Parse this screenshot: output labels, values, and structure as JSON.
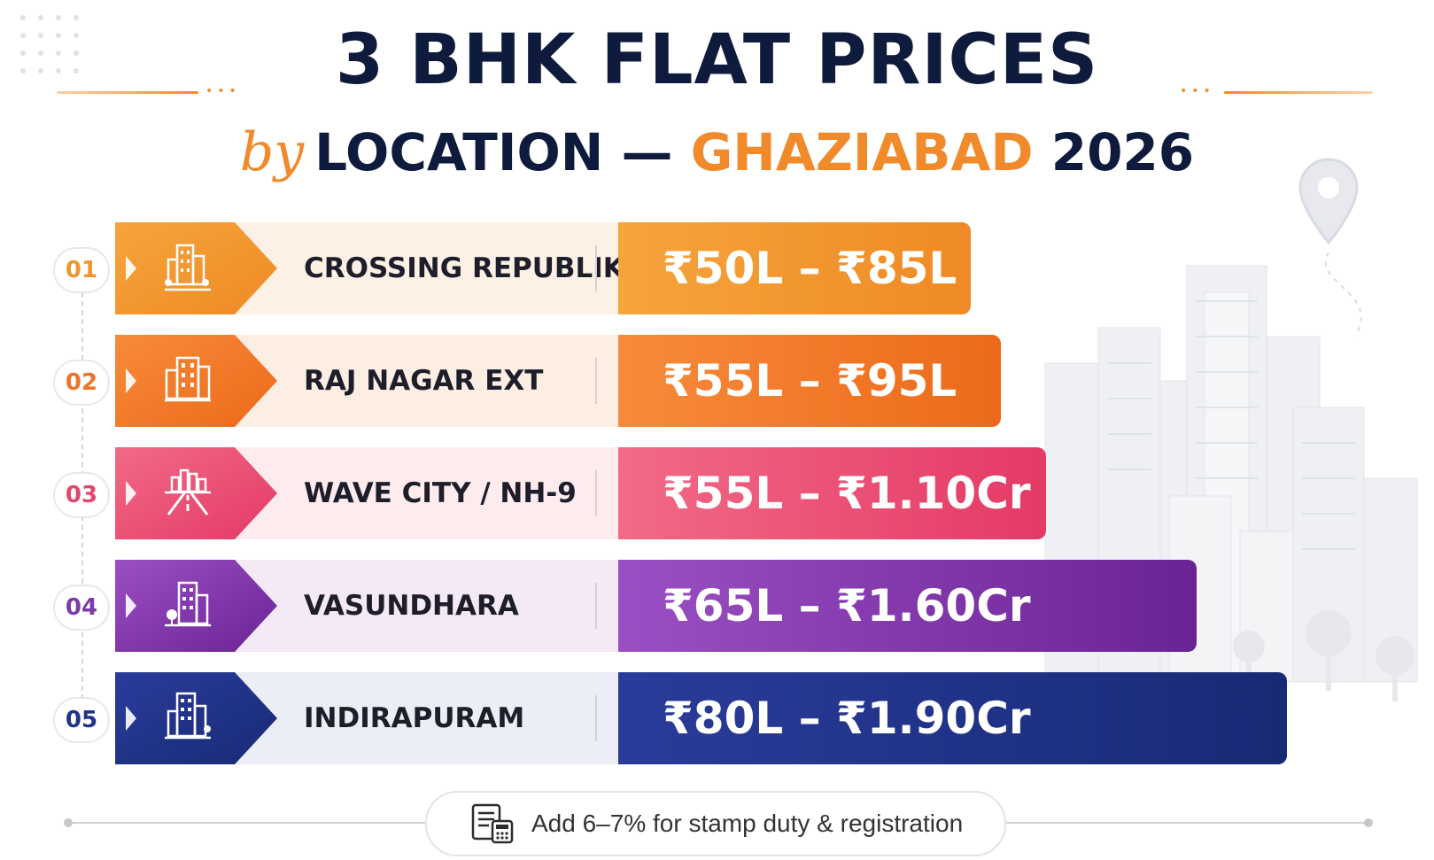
{
  "title": {
    "line1": "3 BHK FLAT PRICES",
    "by": "by",
    "line2_main": "LOCATION —",
    "line2_accent": "GHAZIABAD",
    "line2_year": "2026"
  },
  "chart_data": {
    "type": "bar",
    "title": "3 BHK FLAT PRICES by LOCATION — GHAZIABAD 2026",
    "categories": [
      "CROSSING REPUBLIK",
      "RAJ NAGAR EXT",
      "WAVE CITY / NH-9",
      "VASUNDHARA",
      "INDIRAPURAM"
    ],
    "series": [
      {
        "values_min_lakh": [
          50,
          55,
          55,
          65,
          80
        ]
      },
      {
        "values_max_lakh": [
          85,
          95,
          110,
          160,
          190
        ]
      }
    ],
    "bars": [
      {
        "num": "01",
        "label": "CROSSING REPUBLIK",
        "price": "₹50L – ₹85L",
        "max_lakh": 85,
        "icon": "buildings-icon",
        "color_from": "#f6a43c",
        "color_to": "#ef8a25",
        "num_color": "#f0952e",
        "label_bg": "#fdf1e6"
      },
      {
        "num": "02",
        "label": "RAJ NAGAR EXT",
        "price": "₹55L – ₹95L",
        "max_lakh": 95,
        "icon": "apartment-icon",
        "color_from": "#f78b3a",
        "color_to": "#ec6a1a",
        "num_color": "#ef7426",
        "label_bg": "#fdeee4"
      },
      {
        "num": "03",
        "label": "WAVE CITY / NH-9",
        "price": "₹55L – ₹1.10Cr",
        "max_lakh": 110,
        "icon": "highway-city-icon",
        "color_from": "#f26a86",
        "color_to": "#e43a66",
        "num_color": "#e4466e",
        "label_bg": "#fdebee"
      },
      {
        "num": "04",
        "label": "VASUNDHARA",
        "price": "₹65L – ₹1.60Cr",
        "max_lakh": 160,
        "icon": "tower-icon",
        "color_from": "#9b4fc4",
        "color_to": "#6a2394",
        "num_color": "#7e3aa8",
        "label_bg": "#f3eaf6"
      },
      {
        "num": "05",
        "label": "INDIRAPURAM",
        "price": "₹80L – ₹1.90Cr",
        "max_lakh": 190,
        "icon": "skyscraper-icon",
        "color_from": "#2a3c9a",
        "color_to": "#182a75",
        "num_color": "#1f3388",
        "label_bg": "#eceef6"
      }
    ]
  },
  "footer": {
    "note": "Add 6–7% for stamp duty & registration",
    "icon": "document-calculator-icon"
  }
}
